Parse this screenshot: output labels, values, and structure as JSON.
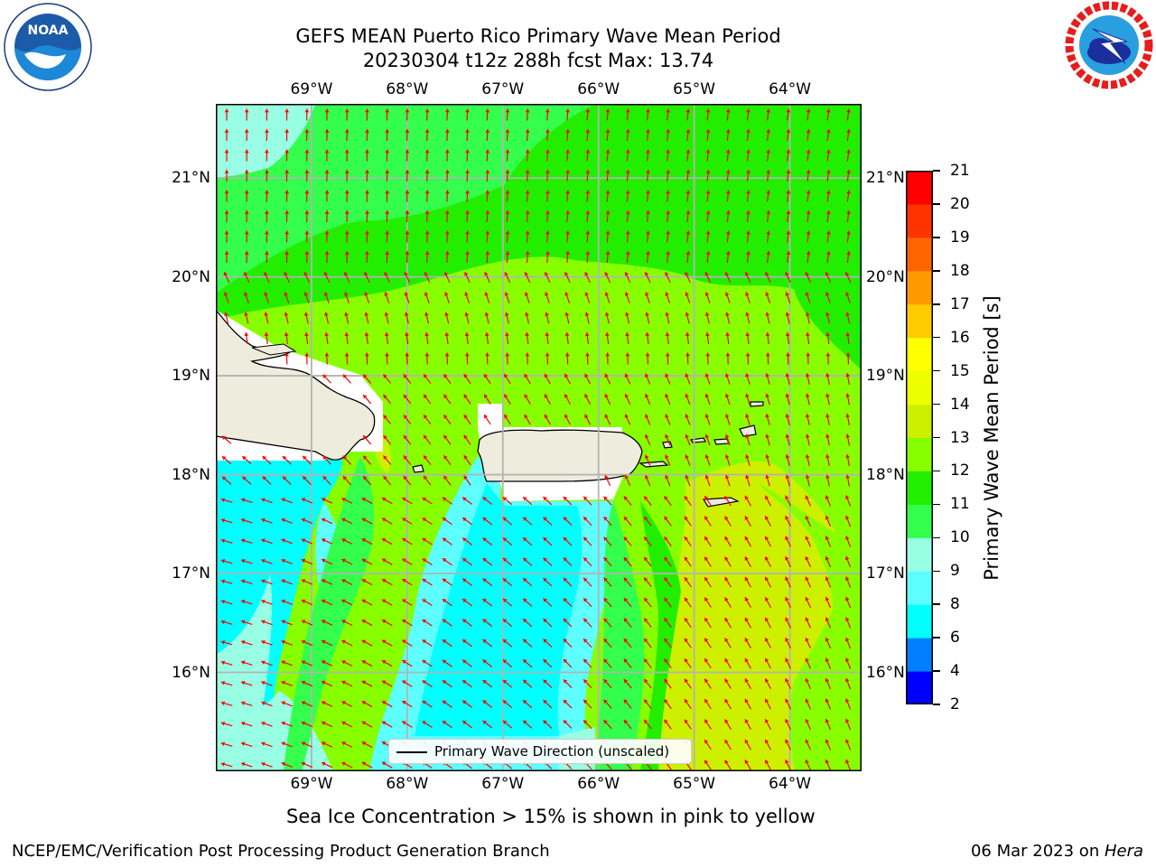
{
  "title": {
    "line1": "GEFS MEAN Puerto Rico Primary Wave Mean Period",
    "line2": "20230304 t12z 288h fcst   Max: 13.74"
  },
  "logos": {
    "noara": {
      "text": "NOAA",
      "ring_text": "NATIONAL OCEANIC AND ATMOSPHERIC ADMINISTRATION · U.S. DEPARTMENT OF COMMERCE"
    },
    "nws": {
      "ring_text": "NATIONAL WEATHER SERVICE"
    }
  },
  "map": {
    "lon_ticks": [
      "69°W",
      "68°W",
      "67°W",
      "66°W",
      "65°W",
      "64°W"
    ],
    "lat_ticks": [
      "21°N",
      "20°N",
      "19°N",
      "18°N",
      "17°N",
      "16°N"
    ],
    "lon_range": [
      -70.0,
      -63.25
    ],
    "lat_range": [
      15.0,
      21.75
    ],
    "land_color": "#eeeddd",
    "arrow_color": "#ff0000",
    "legend_label": "Primary Wave Direction (unscaled)"
  },
  "colorbar": {
    "label": "Primary Wave Mean Period [s]",
    "ticks": [
      "21",
      "20",
      "19",
      "18",
      "17",
      "16",
      "15",
      "14",
      "13",
      "12",
      "11",
      "10",
      "9",
      "8",
      "6",
      "4",
      "2"
    ],
    "bins": [
      {
        "from": 2,
        "to": 4,
        "color": "#0000ff"
      },
      {
        "from": 4,
        "to": 6,
        "color": "#0080ff"
      },
      {
        "from": 6,
        "to": 8,
        "color": "#00ffff"
      },
      {
        "from": 8,
        "to": 9,
        "color": "#5effff"
      },
      {
        "from": 9,
        "to": 10,
        "color": "#99ffe4"
      },
      {
        "from": 10,
        "to": 11,
        "color": "#33ff4c"
      },
      {
        "from": 11,
        "to": 12,
        "color": "#22ee00"
      },
      {
        "from": 12,
        "to": 13,
        "color": "#88ff00"
      },
      {
        "from": 13,
        "to": 14,
        "color": "#ccf000"
      },
      {
        "from": 14,
        "to": 15,
        "color": "#eeff00"
      },
      {
        "from": 15,
        "to": 16,
        "color": "#ffff00"
      },
      {
        "from": 16,
        "to": 17,
        "color": "#ffcc00"
      },
      {
        "from": 17,
        "to": 18,
        "color": "#ff9900"
      },
      {
        "from": 18,
        "to": 19,
        "color": "#ff6600"
      },
      {
        "from": 19,
        "to": 20,
        "color": "#ff3300"
      },
      {
        "from": 20,
        "to": 21,
        "color": "#ff0000"
      }
    ]
  },
  "note": "Sea Ice Concentration > 15% is shown in pink to yellow",
  "footer": {
    "left": "NCEP/EMC/Verification Post Processing Product Generation Branch",
    "date": "06 Mar 2023 on ",
    "machine": "Hera"
  }
}
